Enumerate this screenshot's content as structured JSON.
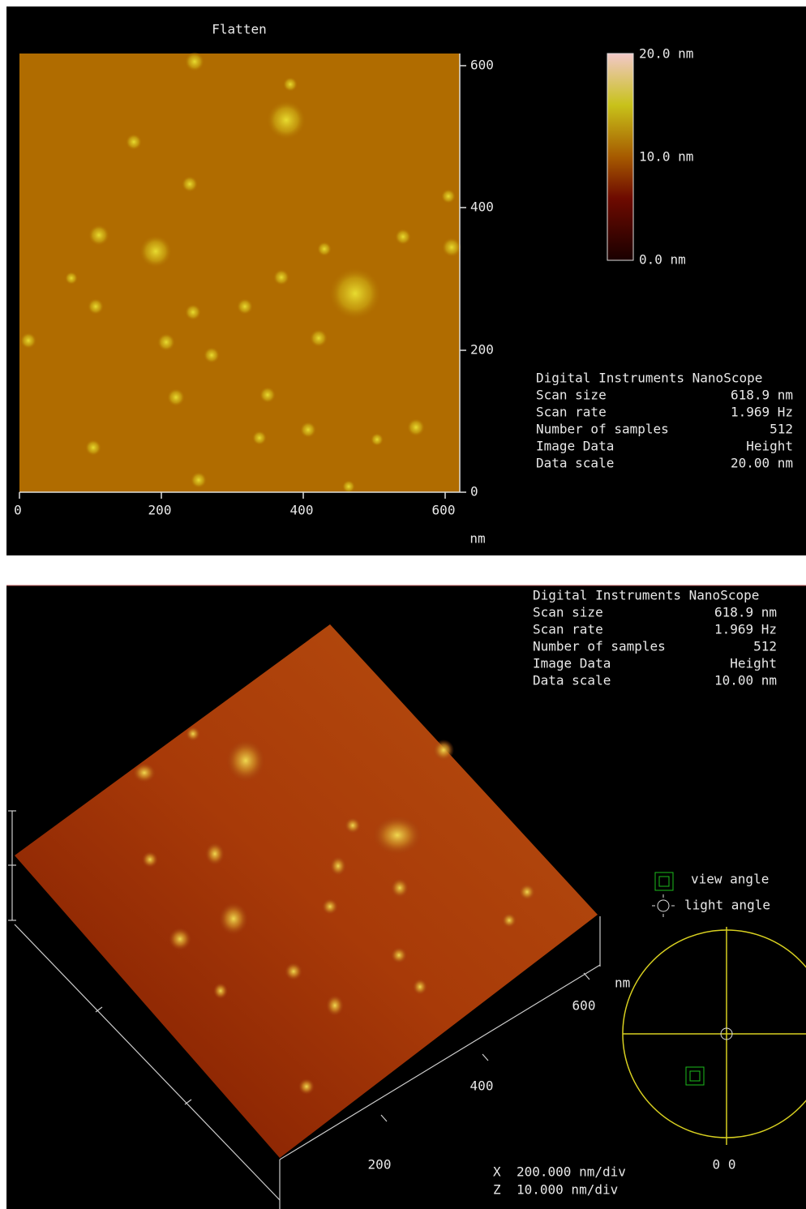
{
  "top_panel": {
    "title": "Flatten",
    "x_ticks": [
      "0",
      "200",
      "400",
      "600"
    ],
    "y_ticks": [
      "600",
      "400",
      "200",
      "0"
    ],
    "unit": "nm",
    "colorbar_labels": [
      "20.0 nm",
      "10.0 nm",
      "0.0 nm"
    ],
    "info": {
      "heading": "Digital Instruments NanoScope",
      "rows": [
        [
          "Scan size",
          "618.9 nm"
        ],
        [
          "Scan rate",
          "1.969 Hz"
        ],
        [
          "Number of samples",
          "512"
        ],
        [
          "Image Data",
          "Height"
        ],
        [
          "Data scale",
          "20.00 nm"
        ]
      ]
    }
  },
  "bottom_panel": {
    "info": {
      "heading": "Digital Instruments NanoScope",
      "rows": [
        [
          "Scan size",
          "618.9 nm"
        ],
        [
          "Scan rate",
          "1.969 Hz"
        ],
        [
          "Number of samples",
          "512"
        ],
        [
          "Image Data",
          "Height"
        ],
        [
          "Data scale",
          "10.00 nm"
        ]
      ]
    },
    "axis_unit": "nm",
    "axis_ticks": [
      "600",
      "400",
      "200"
    ],
    "legend": [
      "view angle",
      "light angle"
    ],
    "angle_readout": "0 0",
    "scales": [
      [
        "X",
        "200.000 nm/div"
      ],
      [
        "Z",
        "10.000 nm/div"
      ]
    ]
  }
}
